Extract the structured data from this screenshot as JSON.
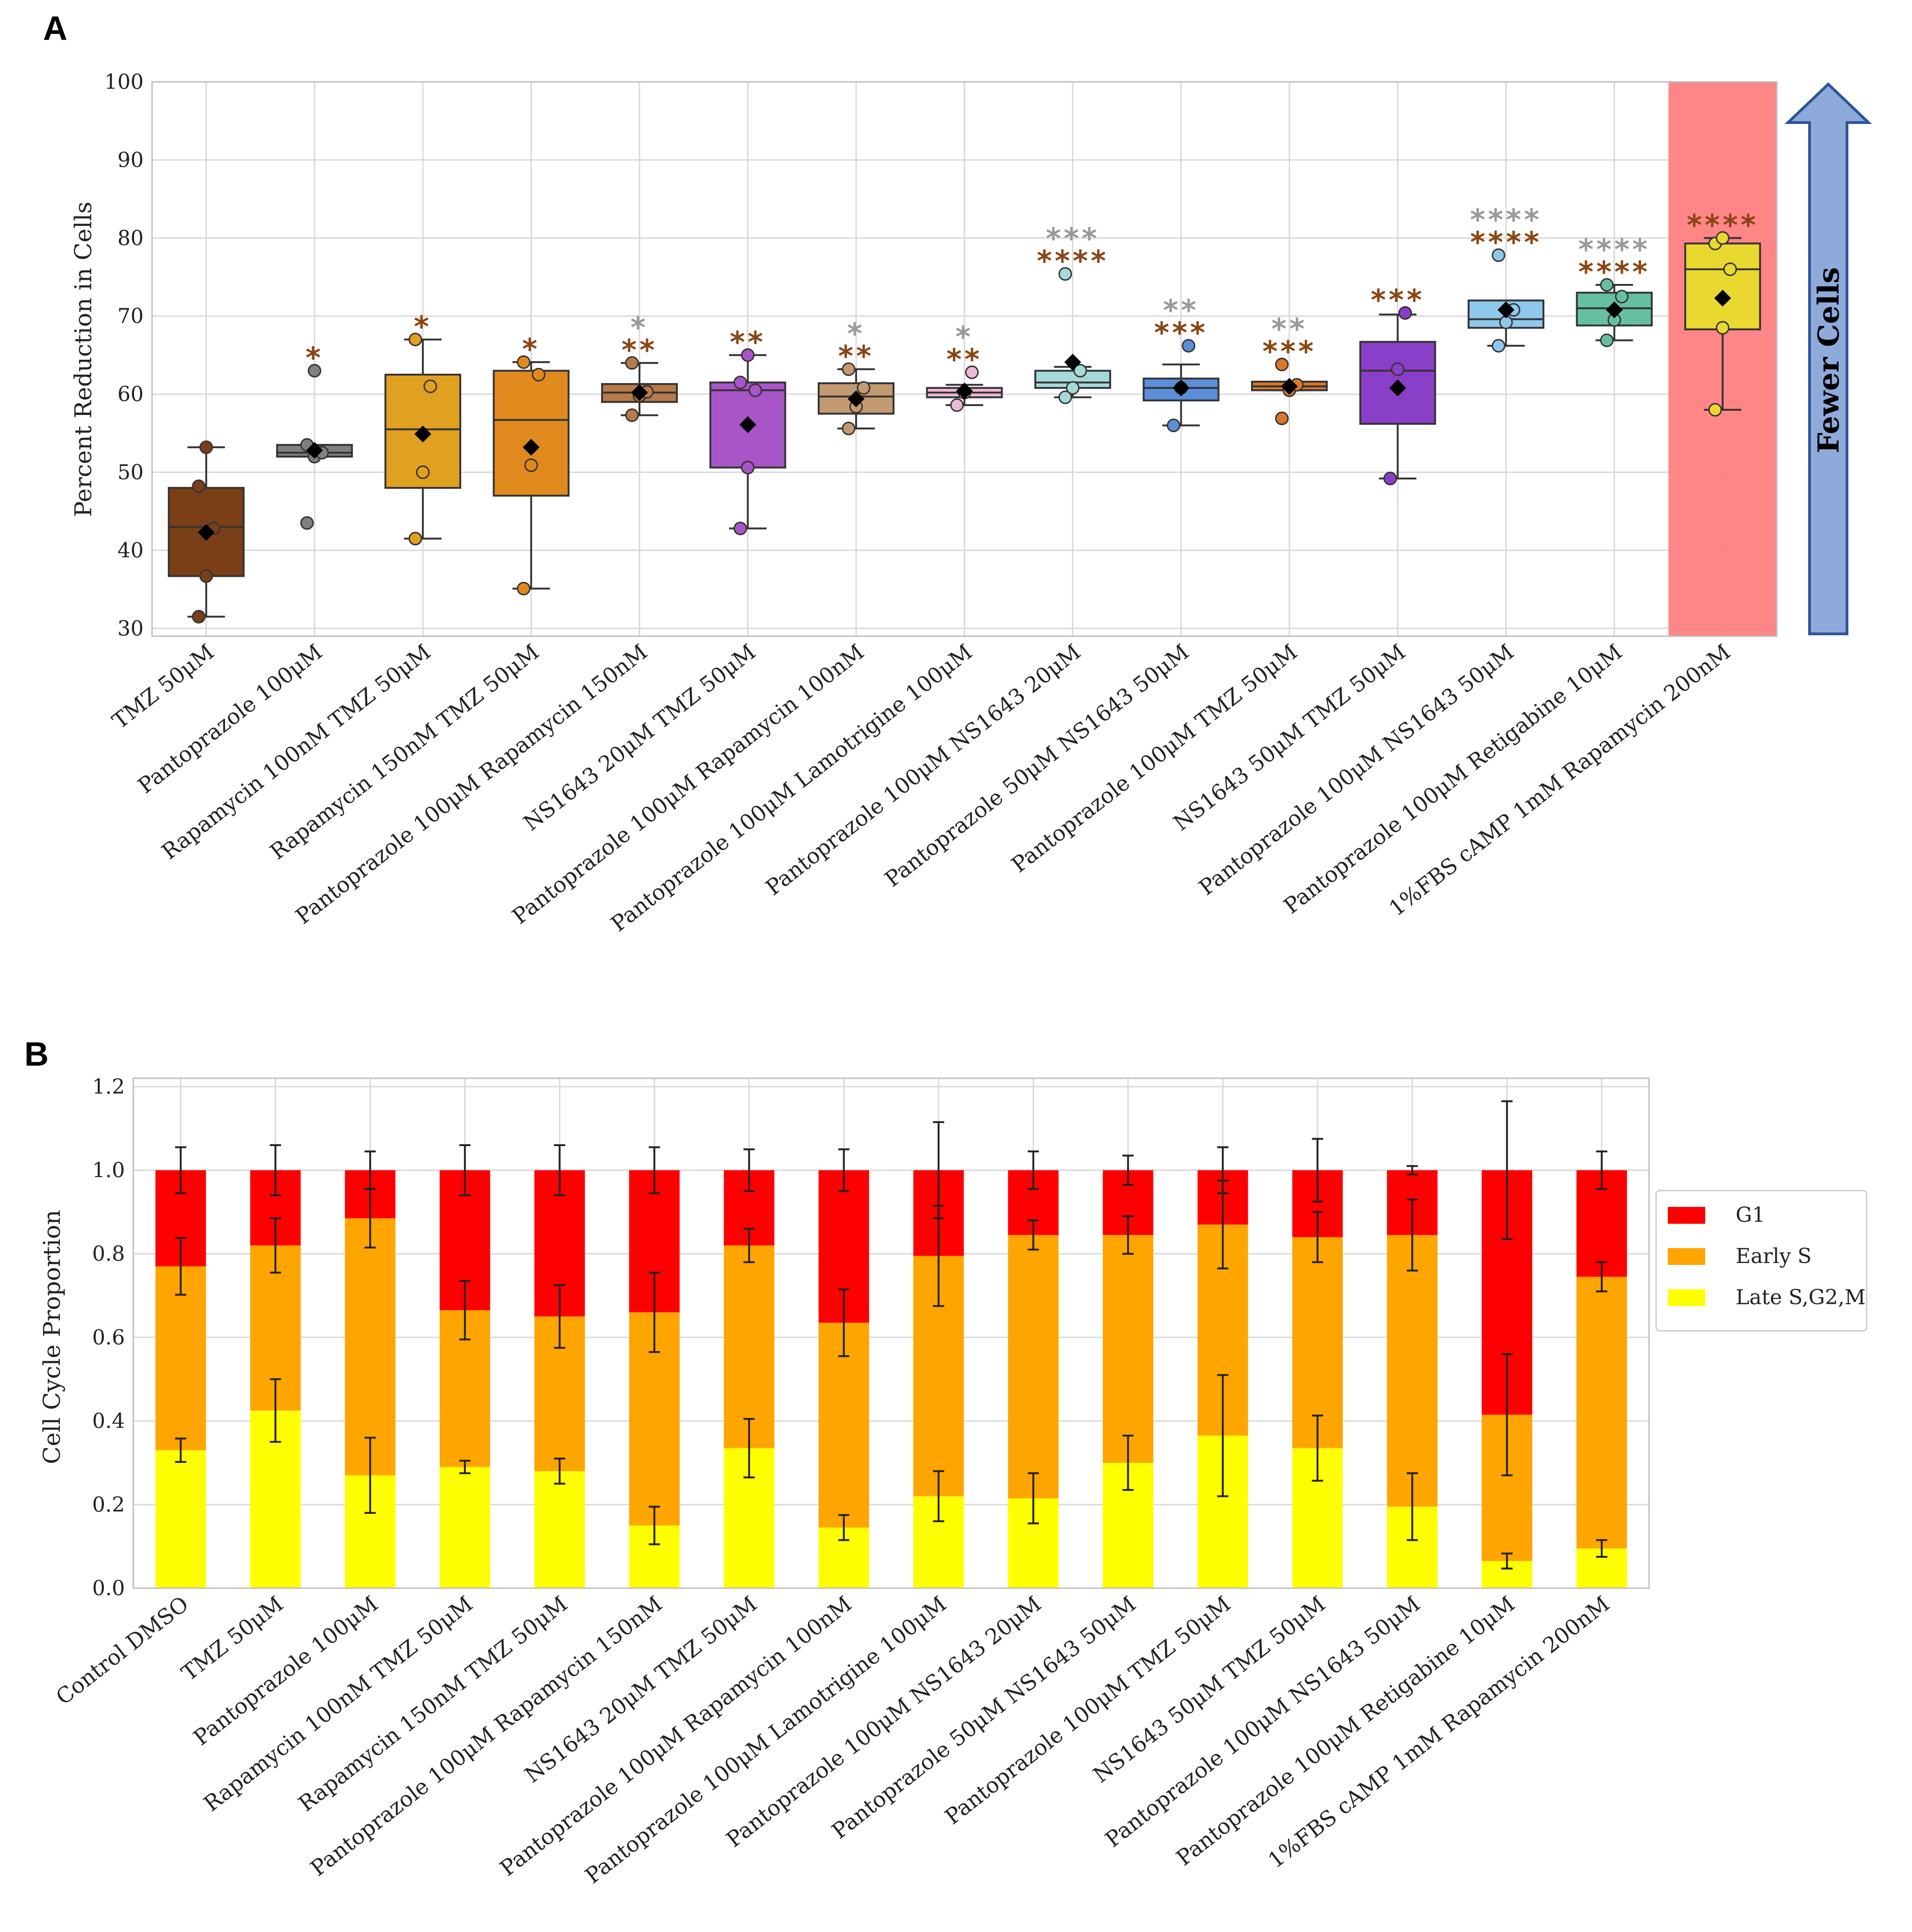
{
  "colors": {
    "sig_brown": "#8B4513",
    "sig_gray": "#999999",
    "highlight": "#ff7f7f",
    "arrow_fill": "#8eaadb",
    "arrow_stroke": "#2f5597",
    "g1": "#ff0000",
    "early_s": "#ffa500",
    "late_s": "#ffff00"
  },
  "arrow": {
    "label": "Fewer Cells"
  },
  "chart_data": [
    {
      "panel": "A",
      "type": "box",
      "title": "",
      "xlabel": "",
      "ylabel": "Percent Reduction in Cells",
      "ylim": [
        29,
        100
      ],
      "yticks": [
        30,
        40,
        50,
        60,
        70,
        80,
        90,
        100
      ],
      "grid": true,
      "highlight_category_index": 14,
      "categories": [
        {
          "label": "TMZ 50μM",
          "color": "#7b3f18",
          "q1": 36.7,
          "median": 43,
          "q3": 48,
          "whisker_low": 31.5,
          "whisker_high": 53.2,
          "mean": 42.3,
          "points": [
            31.5,
            36.7,
            42.8,
            48.2,
            53.2
          ],
          "sig_brown": "",
          "sig_gray": ""
        },
        {
          "label": "Pantoprazole 100μM",
          "color": "#808080",
          "q1": 52,
          "median": 52.5,
          "q3": 53.5,
          "whisker_low": 52,
          "whisker_high": 53.5,
          "mean": 52.8,
          "points": [
            43.5,
            52,
            52.5,
            53.5,
            63
          ],
          "sig_brown": "*",
          "sig_gray": ""
        },
        {
          "label": "Rapamycin 100nM TMZ 50μM",
          "color": "#e0a020",
          "q1": 48,
          "median": 55.5,
          "q3": 62.5,
          "whisker_low": 41.5,
          "whisker_high": 67,
          "mean": 54.9,
          "points": [
            41.5,
            50,
            61,
            67
          ],
          "sig_brown": "*",
          "sig_gray": ""
        },
        {
          "label": "Rapamycin 150nM TMZ 50μM",
          "color": "#e08a1e",
          "q1": 47,
          "median": 56.7,
          "q3": 63,
          "whisker_low": 35.1,
          "whisker_high": 64.1,
          "mean": 53.2,
          "points": [
            35.1,
            50.9,
            62.5,
            64.1
          ],
          "sig_brown": "*",
          "sig_gray": ""
        },
        {
          "label": "Pantoprazole 100μM Rapamycin 150nM",
          "color": "#b87a4b",
          "q1": 59,
          "median": 60.2,
          "q3": 61.3,
          "whisker_low": 57.3,
          "whisker_high": 64,
          "mean": 60.2,
          "points": [
            57.3,
            59.8,
            60.3,
            64
          ],
          "sig_brown": "**",
          "sig_gray": "*"
        },
        {
          "label": "NS1643 20μM TMZ 50μM",
          "color": "#a855c8",
          "q1": 50.6,
          "median": 60.5,
          "q3": 61.5,
          "whisker_low": 42.8,
          "whisker_high": 65,
          "mean": 56.1,
          "points": [
            42.8,
            50.6,
            60.5,
            61.5,
            65
          ],
          "sig_brown": "**",
          "sig_gray": ""
        },
        {
          "label": "Pantoprazole 100μM Rapamycin 100nM",
          "color": "#c49a72",
          "q1": 57.5,
          "median": 59.7,
          "q3": 61.4,
          "whisker_low": 55.6,
          "whisker_high": 63.2,
          "mean": 59.4,
          "points": [
            55.6,
            58.4,
            60.8,
            63.2
          ],
          "sig_brown": "**",
          "sig_gray": "*"
        },
        {
          "label": "Pantoprazole 100μM Lamotrigine 100μM",
          "color": "#f0b8d8",
          "q1": 59.6,
          "median": 60.2,
          "q3": 60.8,
          "whisker_low": 58.6,
          "whisker_high": 61.2,
          "mean": 60.4,
          "points": [
            58.6,
            60.2,
            62.8
          ],
          "sig_brown": "**",
          "sig_gray": "*"
        },
        {
          "label": "Pantoprazole 100μM NS1643 20μM",
          "color": "#a6dada",
          "q1": 60.8,
          "median": 61.5,
          "q3": 63,
          "whisker_low": 59.6,
          "whisker_high": 63.5,
          "mean": 64.1,
          "points": [
            59.6,
            60.8,
            63,
            75.4
          ],
          "sig_brown": "****",
          "sig_gray": "***"
        },
        {
          "label": "Pantoprazole 50μM NS1643 50μM",
          "color": "#5b8ed8",
          "q1": 59.2,
          "median": 60.8,
          "q3": 62,
          "whisker_low": 56,
          "whisker_high": 63.8,
          "mean": 60.8,
          "points": [
            56,
            60.8,
            66.2
          ],
          "sig_brown": "***",
          "sig_gray": "**"
        },
        {
          "label": "Pantoprazole 100μM TMZ 50μM",
          "color": "#d9772a",
          "q1": 60.5,
          "median": 61,
          "q3": 61.6,
          "whisker_low": 60.5,
          "whisker_high": 61.6,
          "mean": 61,
          "points": [
            56.9,
            60.5,
            61.2,
            63.8
          ],
          "sig_brown": "***",
          "sig_gray": "**"
        },
        {
          "label": "NS1643 50μM TMZ 50μM",
          "color": "#8a3fc8",
          "q1": 56.2,
          "median": 63,
          "q3": 66.7,
          "whisker_low": 49.2,
          "whisker_high": 70.2,
          "mean": 60.8,
          "points": [
            49.2,
            63.2,
            70.4
          ],
          "sig_brown": "***",
          "sig_gray": ""
        },
        {
          "label": "Pantoprazole 100μM NS1643 50μM",
          "color": "#8ec8ec",
          "q1": 68.5,
          "median": 69.6,
          "q3": 72,
          "whisker_low": 66.2,
          "whisker_high": 72,
          "mean": 70.8,
          "points": [
            66.2,
            69.2,
            70.8,
            77.8
          ],
          "sig_brown": "****",
          "sig_gray": "****"
        },
        {
          "label": "Pantoprazole 100μM Retigabine 10μM",
          "color": "#66c0a0",
          "q1": 68.8,
          "median": 71,
          "q3": 73,
          "whisker_low": 66.9,
          "whisker_high": 74,
          "mean": 70.8,
          "points": [
            66.9,
            69.5,
            72.5,
            74
          ],
          "sig_brown": "****",
          "sig_gray": "****"
        },
        {
          "label": "1%FBS cAMP 1mM Rapamycin 200nM",
          "color": "#e8d830",
          "q1": 68.3,
          "median": 76,
          "q3": 79.3,
          "whisker_low": 58,
          "whisker_high": 80,
          "mean": 72.3,
          "points": [
            58,
            68.5,
            76,
            79.3,
            80
          ],
          "sig_brown": "****",
          "sig_gray": ""
        }
      ]
    },
    {
      "panel": "B",
      "type": "stacked_bar",
      "title": "",
      "xlabel": "",
      "ylabel": "Cell Cycle Proportion",
      "ylim": [
        0,
        1.22
      ],
      "yticks": [
        "0.0",
        "0.2",
        "0.4",
        "0.6",
        "0.8",
        "1.0",
        "1.2"
      ],
      "grid": true,
      "legend_position": "right",
      "series": [
        {
          "name": "G1",
          "color": "#ff0000"
        },
        {
          "name": "Early S",
          "color": "#ffa500"
        },
        {
          "name": "Late S,G2,M",
          "color": "#ffff00"
        }
      ],
      "categories": [
        "Control DMSO",
        "TMZ 50μM",
        "Pantoprazole 100μM",
        "Rapamycin 100nM TMZ 50μM",
        "Rapamycin 150nM TMZ 50μM",
        "Pantoprazole 100μM Rapamycin 150nM",
        "NS1643 20μM TMZ 50μM",
        "Pantoprazole 100μM Rapamycin 100nM",
        "Pantoprazole 100μM Lamotrigine 100μM",
        "Pantoprazole 100μM NS1643 20μM",
        "Pantoprazole 50μM NS1643 50μM",
        "Pantoprazole 100μM TMZ 50μM",
        "NS1643 50μM TMZ 50μM",
        "Pantoprazole 100μM NS1643 50μM",
        "Pantoprazole 100μM Retigabine 10μM",
        "1%FBS cAMP 1mM Rapamycin 200nM"
      ],
      "late_s": [
        0.33,
        0.425,
        0.27,
        0.29,
        0.28,
        0.15,
        0.335,
        0.145,
        0.22,
        0.215,
        0.3,
        0.365,
        0.335,
        0.195,
        0.065,
        0.095
      ],
      "early_s_top": [
        0.77,
        0.82,
        0.885,
        0.665,
        0.65,
        0.66,
        0.82,
        0.635,
        0.795,
        0.845,
        0.845,
        0.87,
        0.84,
        0.845,
        0.415,
        0.745
      ],
      "g1_top": [
        1.0,
        1.0,
        1.0,
        1.0,
        1.0,
        1.0,
        1.0,
        1.0,
        1.0,
        1.0,
        1.0,
        1.0,
        1.0,
        1.0,
        1.0,
        1.0
      ],
      "err_late_s": [
        0.028,
        0.075,
        0.09,
        0.015,
        0.03,
        0.045,
        0.07,
        0.03,
        0.06,
        0.06,
        0.065,
        0.145,
        0.078,
        0.08,
        0.018,
        0.02
      ],
      "err_early_s": [
        0.068,
        0.065,
        0.07,
        0.07,
        0.075,
        0.095,
        0.04,
        0.08,
        0.12,
        0.035,
        0.045,
        0.105,
        0.06,
        0.085,
        0.145,
        0.035
      ],
      "err_g1": [
        0.055,
        0.06,
        0.045,
        0.06,
        0.06,
        0.055,
        0.05,
        0.05,
        0.115,
        0.045,
        0.035,
        0.055,
        0.075,
        0.01,
        0.165,
        0.045
      ]
    }
  ]
}
